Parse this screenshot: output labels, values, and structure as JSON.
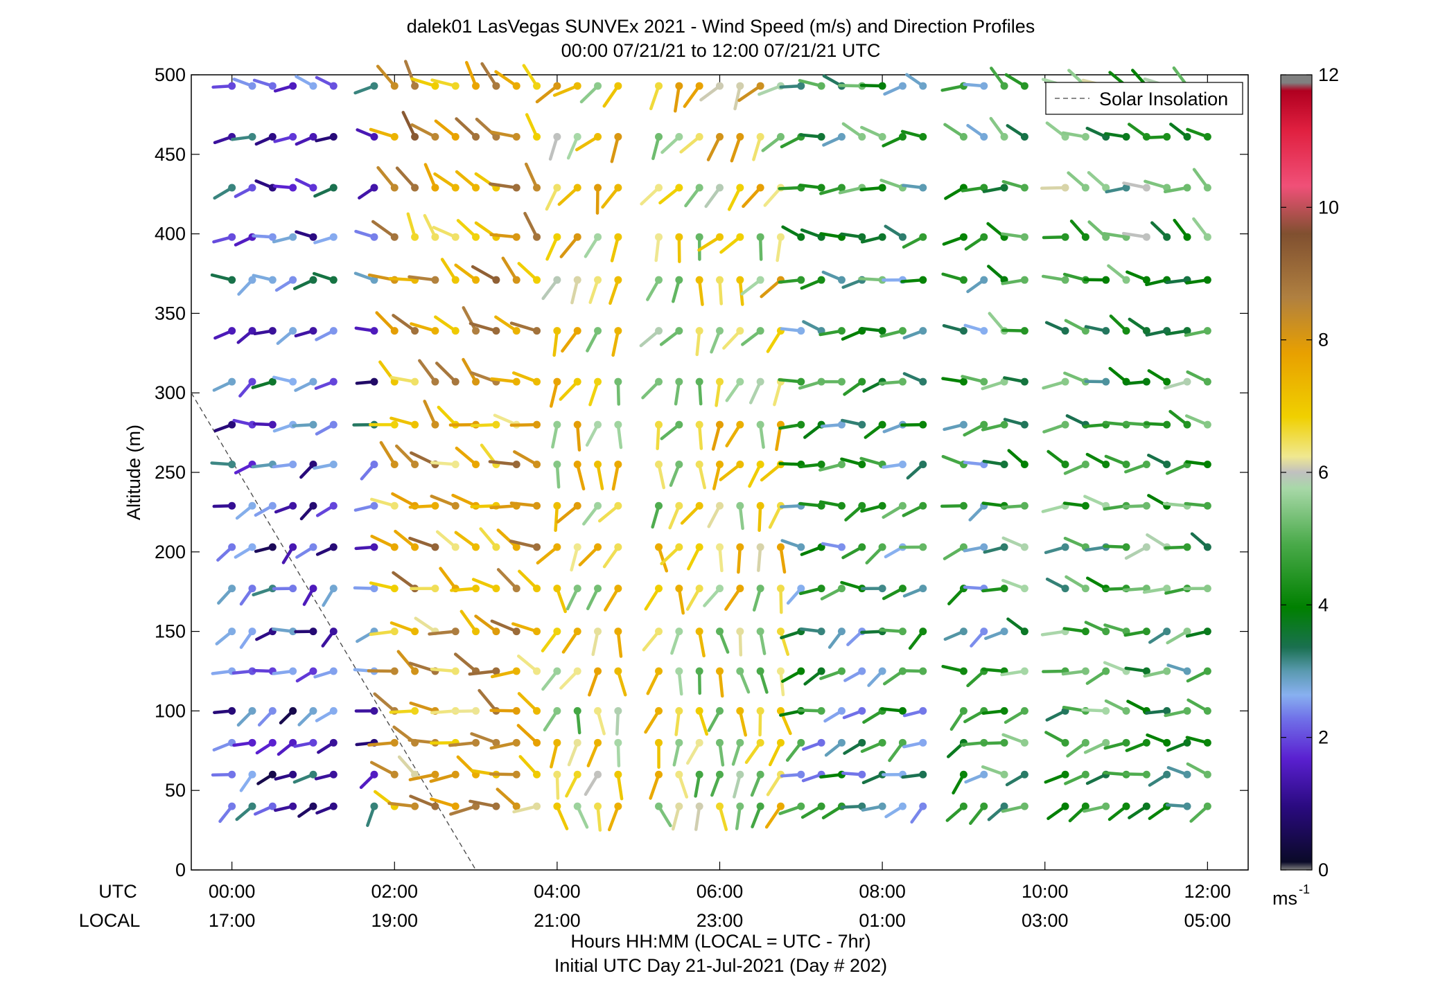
{
  "chart_data": {
    "type": "wind-profile",
    "title": "dalek01 LasVegas SUNVEx 2021 - Wind Speed (m/s) and Direction Profiles",
    "subtitle": "00:00 07/21/21 to 12:00 07/21/21  UTC",
    "ylabel": "Altitude (m)",
    "xlabel_line1": "Hours HH:MM  (LOCAL = UTC - 7hr)",
    "xlabel_line2": "Initial UTC Day 21-Jul-2021 (Day # 202)",
    "utc_row_label": "UTC",
    "local_row_label": "LOCAL",
    "xlim_hours": [
      -0.5,
      12.5
    ],
    "ylim": [
      0,
      500
    ],
    "x_ticks_utc": [
      "00:00",
      "02:00",
      "04:00",
      "06:00",
      "08:00",
      "10:00",
      "12:00"
    ],
    "x_ticks_local": [
      "17:00",
      "19:00",
      "21:00",
      "23:00",
      "01:00",
      "03:00",
      "05:00"
    ],
    "x_tick_hours": [
      0,
      2,
      4,
      6,
      8,
      10,
      12
    ],
    "y_ticks": [
      0,
      50,
      100,
      150,
      200,
      250,
      300,
      350,
      400,
      450,
      500
    ],
    "legend_label": "Solar Insolation",
    "legend_position": "top-right",
    "solar_line": [
      [
        -0.5,
        300
      ],
      [
        3.0,
        0
      ]
    ],
    "colorbar": {
      "range": [
        0,
        12
      ],
      "ticks": [
        0,
        2,
        4,
        6,
        8,
        10,
        12
      ],
      "unit_label": "ms",
      "unit_exp": "-1"
    },
    "heights": [
      40,
      60,
      80,
      100,
      125,
      150,
      177,
      203,
      229,
      255,
      280,
      307,
      339,
      371,
      398,
      429,
      461,
      493
    ],
    "time_step_hours": 0.25,
    "time_count": 49,
    "missing_time_indices": [
      6,
      20,
      35,
      40
    ],
    "regimes": [
      {
        "start": 0.0,
        "end": 1.9,
        "speed": 1.8,
        "dir": 250
      },
      {
        "start": 2.0,
        "end": 3.8,
        "speed": 7.5,
        "dir": 300
      },
      {
        "start": 4.0,
        "end": 6.9,
        "speed": 6.2,
        "dir": 200
      },
      {
        "start": 7.0,
        "end": 9.3,
        "speed": 3.6,
        "dir": 260
      },
      {
        "start": 9.5,
        "end": 12.0,
        "speed": 4.2,
        "dir": 280
      }
    ]
  }
}
